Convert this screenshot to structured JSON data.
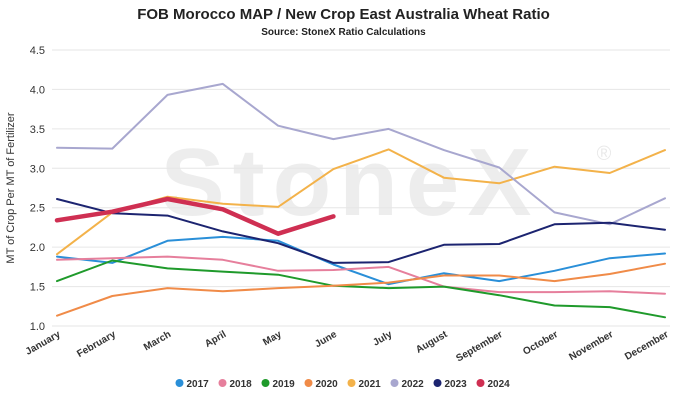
{
  "colors": {
    "grid": "#e6e6e6",
    "axis_text": "#333333",
    "watermark": "#000000"
  },
  "chart_data": {
    "type": "line",
    "title": "FOB Morocco MAP / New Crop East Australia Wheat Ratio",
    "subtitle": "Source: StoneX Ratio Calculations",
    "ylabel": "MT of Crop Per MT of Fertilizer",
    "xlabel": "",
    "ylim": [
      1.0,
      4.5
    ],
    "yticks": [
      "1.0",
      "1.5",
      "2.0",
      "2.5",
      "3.0",
      "3.5",
      "4.0",
      "4.5"
    ],
    "grid": true,
    "legend_position": "bottom",
    "watermark": "StoneX",
    "watermark_mark": "®",
    "categories": [
      "January",
      "February",
      "March",
      "April",
      "May",
      "June",
      "July",
      "August",
      "September",
      "October",
      "November",
      "December"
    ],
    "series": [
      {
        "name": "2017",
        "color": "#2a8fd8",
        "width": 2,
        "values": [
          1.88,
          1.8,
          2.08,
          2.13,
          2.08,
          1.78,
          1.53,
          1.67,
          1.57,
          1.7,
          1.86,
          1.92
        ]
      },
      {
        "name": "2018",
        "color": "#e67f9c",
        "width": 2,
        "values": [
          1.84,
          1.86,
          1.88,
          1.84,
          1.7,
          1.71,
          1.75,
          1.5,
          1.43,
          1.43,
          1.44,
          1.41
        ]
      },
      {
        "name": "2019",
        "color": "#1f9a2b",
        "width": 2,
        "values": [
          1.57,
          1.83,
          1.73,
          1.69,
          1.65,
          1.51,
          1.48,
          1.5,
          1.39,
          1.26,
          1.24,
          1.11
        ]
      },
      {
        "name": "2020",
        "color": "#f08b48",
        "width": 2,
        "values": [
          1.13,
          1.38,
          1.48,
          1.44,
          1.48,
          1.51,
          1.55,
          1.64,
          1.64,
          1.57,
          1.66,
          1.79
        ]
      },
      {
        "name": "2021",
        "color": "#f3b24a",
        "width": 2,
        "values": [
          1.91,
          2.44,
          2.64,
          2.55,
          2.51,
          2.99,
          3.24,
          2.88,
          2.81,
          3.02,
          2.94,
          3.23
        ]
      },
      {
        "name": "2022",
        "color": "#a8a7cf",
        "width": 2,
        "values": [
          3.26,
          3.25,
          3.93,
          4.07,
          3.54,
          3.37,
          3.5,
          3.23,
          3.01,
          2.44,
          2.29,
          2.62
        ]
      },
      {
        "name": "2023",
        "color": "#1c2470",
        "width": 2,
        "values": [
          2.61,
          2.43,
          2.4,
          2.2,
          2.05,
          1.8,
          1.81,
          2.03,
          2.04,
          2.29,
          2.31,
          2.22
        ]
      },
      {
        "name": "2024",
        "color": "#cf2f52",
        "width": 4.5,
        "values": [
          2.34,
          2.45,
          2.61,
          2.48,
          2.17,
          2.39,
          null,
          null,
          null,
          null,
          null,
          null
        ]
      }
    ]
  }
}
